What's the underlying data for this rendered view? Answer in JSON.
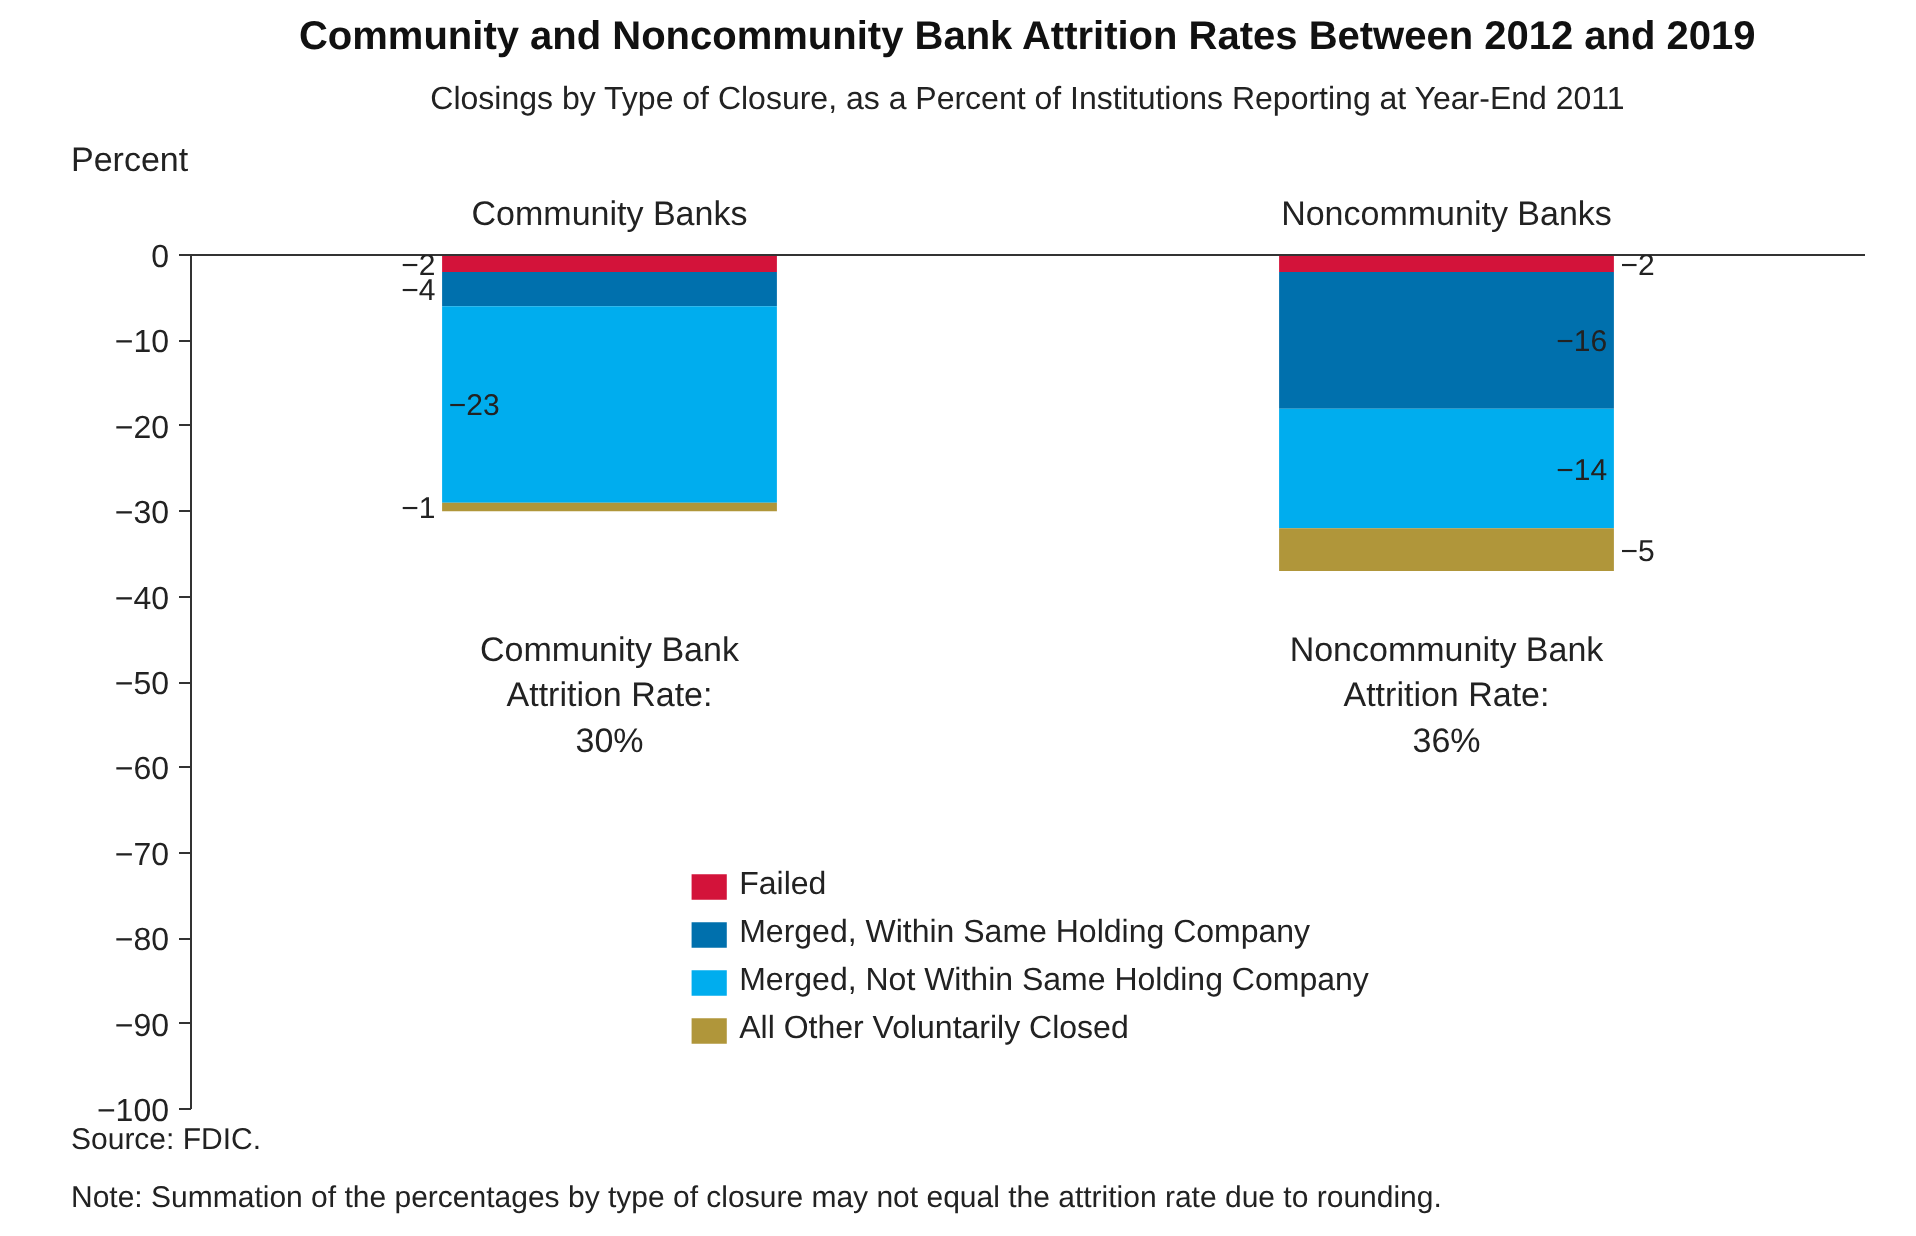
{
  "chart_data": {
    "type": "bar",
    "stacked": true,
    "title": "Community and Noncommunity Bank Attrition Rates Between 2012 and 2019",
    "subtitle": "Closings by Type of Closure, as a Percent of Institutions Reporting at Year-End 2011",
    "ylabel": "Percent",
    "categories": [
      "Community Banks",
      "Noncommunity Banks"
    ],
    "series": [
      {
        "name": "Failed",
        "color": "#d3133a",
        "values": [
          -2,
          -2
        ],
        "value_labels": [
          "−2",
          "−2"
        ]
      },
      {
        "name": "Merged, Within Same Holding Company",
        "color": "#0070ad",
        "values": [
          -4,
          -16
        ],
        "value_labels": [
          "−4",
          "−16"
        ]
      },
      {
        "name": "Merged, Not Within Same Holding Company",
        "color": "#00adee",
        "values": [
          -23,
          -14
        ],
        "value_labels": [
          "−23",
          "−14"
        ]
      },
      {
        "name": "All Other Voluntarily Closed",
        "color": "#b0963a",
        "values": [
          -1,
          -5
        ],
        "value_labels": [
          "−1",
          "−5"
        ]
      }
    ],
    "ylim": [
      -100,
      0
    ],
    "yticks": [
      0,
      -10,
      -20,
      -30,
      -40,
      -50,
      -60,
      -70,
      -80,
      -90,
      -100
    ],
    "grid": false,
    "legend": "bottom",
    "annotations": [
      "Community Bank\nAttrition Rate:\n30%",
      "Noncommunity Bank\nAttrition Rate:\n36%",
      "Source: FDIC.",
      "Note: Summation of the percentages by type of closure may not equal the attrition rate due to rounding."
    ]
  }
}
